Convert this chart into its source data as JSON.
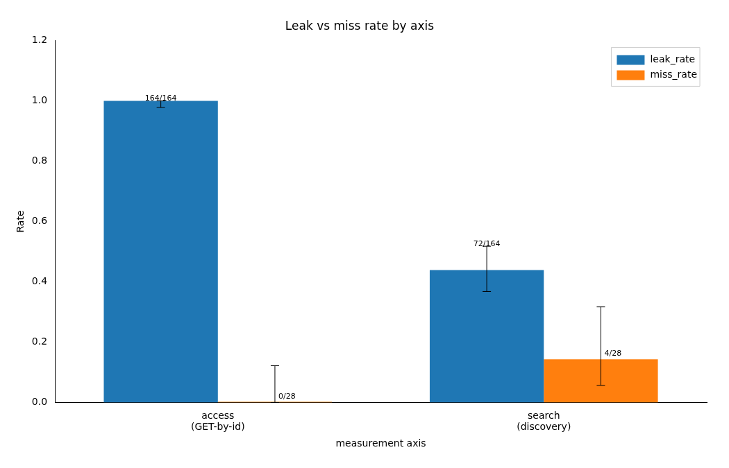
{
  "chart_data": {
    "type": "bar",
    "title": "Leak vs miss rate by axis",
    "xlabel": "measurement axis",
    "ylabel": "Rate",
    "categories": [
      "access\n(GET-by-id)",
      "search\n(discovery)"
    ],
    "series": [
      {
        "name": "leak_rate",
        "color": "#1f77b4",
        "values": [
          1.0,
          0.439
        ],
        "errors": [
          [
            0.978,
            1.0
          ],
          [
            0.368,
            0.518
          ]
        ],
        "value_labels": [
          "164/164",
          "72/164"
        ]
      },
      {
        "name": "miss_rate",
        "color": "#ff7f0e",
        "values": [
          0,
          0.143
        ],
        "errors": [
          [
            0,
            0.122
          ],
          [
            0.057,
            0.317
          ]
        ],
        "value_labels": [
          "0/28",
          "4/28"
        ]
      }
    ],
    "ylim": [
      0,
      1.2
    ],
    "yticks": [
      {
        "value": 0,
        "label": "0.0"
      },
      {
        "value": 0.2,
        "label": "0.2"
      },
      {
        "value": 0.4,
        "label": "0.4"
      },
      {
        "value": 0.6,
        "label": "0.6"
      },
      {
        "value": 0.8,
        "label": "0.8"
      },
      {
        "value": 1.0,
        "label": "1.0"
      },
      {
        "value": 1.2,
        "label": "1.2"
      }
    ],
    "grid": false,
    "legend": "top right"
  }
}
